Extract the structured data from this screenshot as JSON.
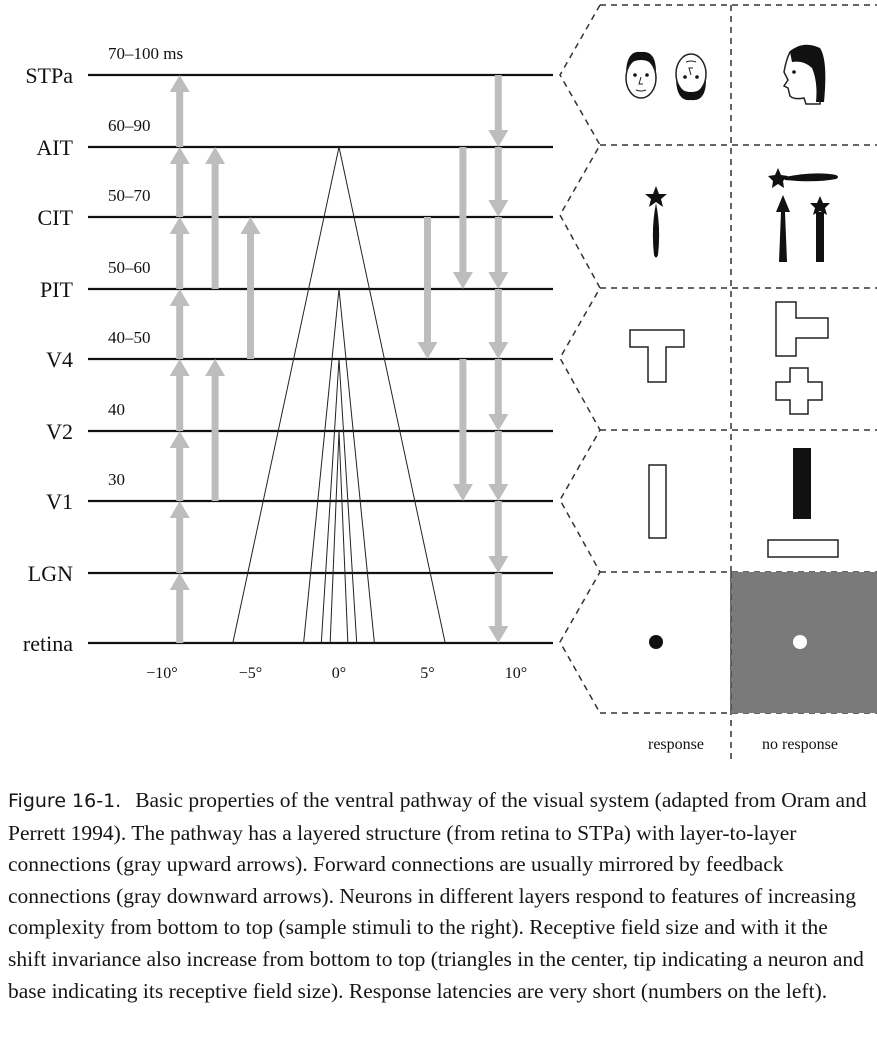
{
  "diagram": {
    "layers": [
      {
        "name": "STPa",
        "latency": "70–100 ms"
      },
      {
        "name": "AIT",
        "latency": "60–90"
      },
      {
        "name": "CIT",
        "latency": "50–70"
      },
      {
        "name": "PIT",
        "latency": "50–60"
      },
      {
        "name": "V4",
        "latency": "40–50"
      },
      {
        "name": "V2",
        "latency": "40"
      },
      {
        "name": "V1",
        "latency": "30"
      },
      {
        "name": "LGN",
        "latency": ""
      },
      {
        "name": "retina",
        "latency": ""
      }
    ],
    "axis_ticks": [
      {
        "value": -10,
        "label": "−10°"
      },
      {
        "value": -5,
        "label": "−5°"
      },
      {
        "value": 0,
        "label": "0°"
      },
      {
        "value": 5,
        "label": "5°"
      },
      {
        "value": 10,
        "label": "10°"
      }
    ],
    "column_labels": {
      "response": "response",
      "no_response": "no response"
    },
    "colors": {
      "arrow": "#bdbdbd",
      "line": "#111111",
      "no_response_bg": "#7a7a7a"
    }
  },
  "caption": {
    "label": "Figure 16-1.",
    "text": "Basic properties of the ventral pathway of the visual system (adapted from Oram and Perrett 1994). The pathway has a layered structure (from retina to STPa) with layer-to-layer connections (gray upward arrows). Forward connections are usually mirrored by feedback connections (gray downward arrows). Neurons in different layers respond to features of increasing complexity from bottom to top (sample stimuli to the right). Receptive field size and with it the shift invariance also increase from bottom to top (triangles in the center, tip indicating a neuron and base indicating its receptive field size). Response latencies are very short (numbers on the left)."
  }
}
